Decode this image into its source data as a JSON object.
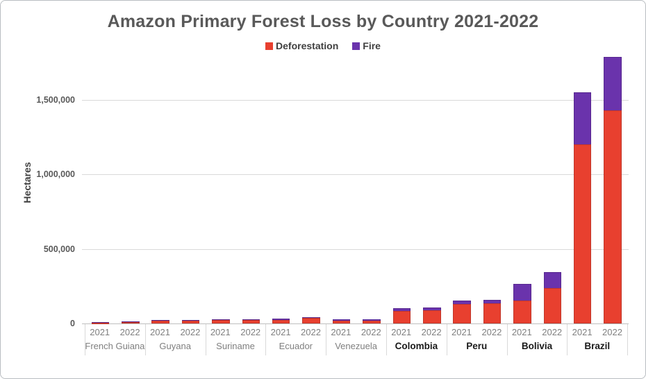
{
  "chart_data": {
    "type": "bar",
    "stacked": true,
    "title": "Amazon Primary Forest Loss by Country 2021-2022",
    "ylabel": "Hectares",
    "xlabel": "",
    "legend_position": "top-center",
    "grid": true,
    "ylim": [
      0,
      1800000
    ],
    "yticks": [
      {
        "value": 0,
        "label": "0"
      },
      {
        "value": 500000,
        "label": "500,000"
      },
      {
        "value": 1000000,
        "label": "1,000,000"
      },
      {
        "value": 1500000,
        "label": "1,500,000"
      }
    ],
    "years": [
      "2021",
      "2022"
    ],
    "series": [
      {
        "name": "Deforestation",
        "color": "#E8402F",
        "border_color": "#C0362A"
      },
      {
        "name": "Fire",
        "color": "#6A33AC",
        "border_color": "#57278F"
      }
    ],
    "groups": [
      {
        "country": "French Guiana",
        "bold": false,
        "bars": [
          {
            "year": "2021",
            "deforestation": 7000,
            "fire": 4000
          },
          {
            "year": "2022",
            "deforestation": 11000,
            "fire": 5000
          }
        ]
      },
      {
        "country": "Guyana",
        "bold": false,
        "bars": [
          {
            "year": "2021",
            "deforestation": 20000,
            "fire": 5000
          },
          {
            "year": "2022",
            "deforestation": 20000,
            "fire": 5000
          }
        ]
      },
      {
        "country": "Suriname",
        "bold": false,
        "bars": [
          {
            "year": "2021",
            "deforestation": 22000,
            "fire": 6000
          },
          {
            "year": "2022",
            "deforestation": 24000,
            "fire": 6000
          }
        ]
      },
      {
        "country": "Ecuador",
        "bold": false,
        "bars": [
          {
            "year": "2021",
            "deforestation": 24000,
            "fire": 8000
          },
          {
            "year": "2022",
            "deforestation": 35000,
            "fire": 5000
          }
        ]
      },
      {
        "country": "Venezuela",
        "bold": false,
        "bars": [
          {
            "year": "2021",
            "deforestation": 21000,
            "fire": 7000
          },
          {
            "year": "2022",
            "deforestation": 21000,
            "fire": 7000
          }
        ]
      },
      {
        "country": "Colombia",
        "bold": true,
        "bars": [
          {
            "year": "2021",
            "deforestation": 82000,
            "fire": 20000
          },
          {
            "year": "2022",
            "deforestation": 90000,
            "fire": 17000
          }
        ]
      },
      {
        "country": "Peru",
        "bold": true,
        "bars": [
          {
            "year": "2021",
            "deforestation": 130000,
            "fire": 25000
          },
          {
            "year": "2022",
            "deforestation": 135000,
            "fire": 22000
          }
        ]
      },
      {
        "country": "Bolivia",
        "bold": true,
        "bars": [
          {
            "year": "2021",
            "deforestation": 155000,
            "fire": 110000
          },
          {
            "year": "2022",
            "deforestation": 235000,
            "fire": 110000
          }
        ]
      },
      {
        "country": "Brazil",
        "bold": true,
        "bars": [
          {
            "year": "2021",
            "deforestation": 1200000,
            "fire": 350000
          },
          {
            "year": "2022",
            "deforestation": 1430000,
            "fire": 360000
          }
        ]
      }
    ]
  }
}
